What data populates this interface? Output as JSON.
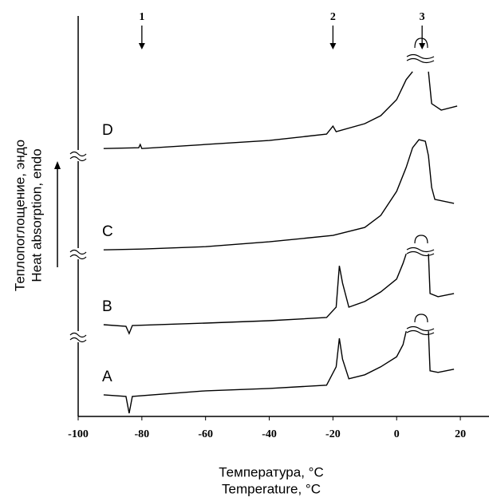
{
  "chart_data": {
    "type": "line",
    "x_label_lines": [
      "Температура, °C",
      "Temperature, °C"
    ],
    "y_label_lines": [
      "Теплопоглощение, эндо",
      "Heat absorption, endo"
    ],
    "xlim": [
      -100,
      29
    ],
    "xticks": [
      -100,
      -80,
      -60,
      -40,
      -20,
      0,
      20
    ],
    "ylim": [
      0,
      100
    ],
    "series": [
      {
        "name": "A",
        "color": "#000000",
        "x": [
          -92,
          -85,
          -84,
          -83,
          -60,
          -40,
          -22,
          -19,
          -18,
          -17,
          -15,
          -10,
          -5,
          0,
          2,
          3,
          null,
          10,
          10.5,
          13,
          18
        ],
        "values": [
          5.4,
          5.0,
          0.8,
          5.0,
          6.4,
          7.0,
          7.8,
          12.4,
          19.5,
          14.3,
          9.4,
          10.4,
          12.4,
          14.9,
          17.9,
          21.3,
          null,
          21.3,
          11.4,
          11.0,
          11.8
        ]
      },
      {
        "name": "B",
        "color": "#000000",
        "x": [
          -92,
          -85,
          -84,
          -83,
          -60,
          -40,
          -22,
          -19,
          -18,
          -17,
          -15,
          -10,
          -5,
          0,
          2,
          3,
          null,
          10,
          10.5,
          13,
          18
        ],
        "values": [
          22.9,
          22.5,
          20.7,
          22.7,
          23.3,
          23.9,
          24.7,
          27.3,
          37.6,
          33.3,
          27.3,
          28.7,
          31.1,
          34.3,
          38.2,
          40.6,
          null,
          40.6,
          30.7,
          29.9,
          30.7
        ]
      },
      {
        "name": "C",
        "color": "#000000",
        "x": [
          -92,
          -80,
          -60,
          -40,
          -20,
          -10,
          -5,
          0,
          3,
          5,
          7,
          9,
          10,
          11,
          12,
          18
        ],
        "values": [
          41.6,
          41.8,
          42.4,
          43.6,
          45.2,
          47.2,
          50.2,
          56.2,
          62.2,
          67.1,
          69.1,
          68.7,
          65.1,
          57.2,
          54.2,
          53.2
        ]
      },
      {
        "name": "D",
        "color": "#000000",
        "x": [
          -92,
          -81,
          -80.5,
          -80,
          -60,
          -40,
          -22,
          -20,
          -19,
          -10,
          -5,
          0,
          3,
          5,
          null,
          10,
          11,
          14,
          19
        ],
        "values": [
          66.9,
          67.1,
          67.9,
          66.9,
          67.9,
          68.9,
          70.5,
          72.5,
          71.1,
          73.1,
          75.1,
          79.1,
          84.1,
          86.1,
          null,
          86.1,
          78.1,
          76.5,
          77.5
        ]
      }
    ],
    "annotations": [
      {
        "text": "1",
        "x": -80
      },
      {
        "text": "2",
        "x": -20
      },
      {
        "text": "3",
        "x": 8
      }
    ]
  }
}
